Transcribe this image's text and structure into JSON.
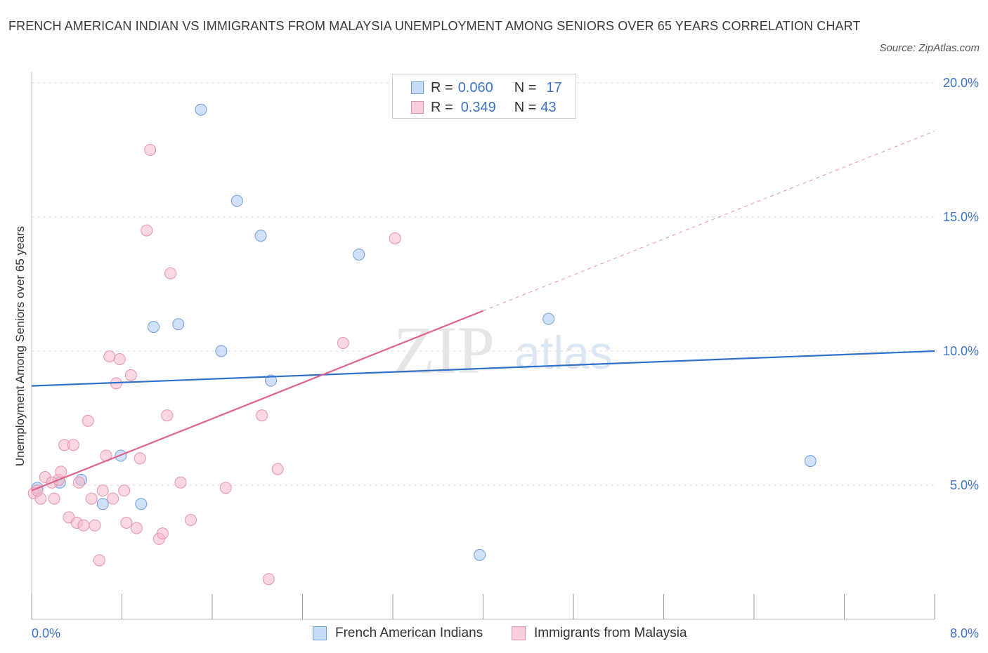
{
  "title": "FRENCH AMERICAN INDIAN VS IMMIGRANTS FROM MALAYSIA UNEMPLOYMENT AMONG SENIORS OVER 65 YEARS CORRELATION CHART",
  "source": "Source: ZipAtlas.com",
  "watermark": {
    "zip": "ZIP",
    "atlas": "atlas"
  },
  "legend": {
    "rows": [
      {
        "r_label": "R =",
        "r_value": "0.060",
        "n_label": "N =",
        "n_value": "17",
        "color": "#a9c6f0"
      },
      {
        "r_label": "R =",
        "r_value": "0.349",
        "n_label": "N =",
        "n_value": "43",
        "color": "#f6b8cb"
      }
    ]
  },
  "colors": {
    "blue_fill": "#a9c6f0",
    "blue_stroke": "#6f9fdc",
    "blue_line": "#2f6fcc",
    "pink_fill": "#f6b8cb",
    "pink_stroke": "#e792ad",
    "pink_line": "#e0638c",
    "tick_label": "#3b73c9",
    "grid": "#dcdcdc"
  },
  "chart_data": {
    "type": "scatter",
    "title": "FRENCH AMERICAN INDIAN VS IMMIGRANTS FROM MALAYSIA UNEMPLOYMENT AMONG SENIORS OVER 65 YEARS CORRELATION CHART",
    "xlabel": "",
    "ylabel": "Unemployment Among Seniors over 65 years",
    "xlim": [
      0,
      8
    ],
    "ylim": [
      0,
      20
    ],
    "x_tick_labels": [
      "0.0%",
      "8.0%"
    ],
    "y_ticks": [
      5,
      10,
      15,
      20
    ],
    "y_tick_labels": [
      "5.0%",
      "10.0%",
      "15.0%",
      "20.0%"
    ],
    "grid": true,
    "legend_position": "top-center",
    "series": [
      {
        "name": "French American Indians",
        "points": [
          [
            0.05,
            4.9
          ],
          [
            0.25,
            5.1
          ],
          [
            0.44,
            5.2
          ],
          [
            0.63,
            4.3
          ],
          [
            0.79,
            6.1
          ],
          [
            0.97,
            4.3
          ],
          [
            1.08,
            10.9
          ],
          [
            1.3,
            11.0
          ],
          [
            1.5,
            19.0
          ],
          [
            1.68,
            10.0
          ],
          [
            1.82,
            15.6
          ],
          [
            2.03,
            14.3
          ],
          [
            2.12,
            8.9
          ],
          [
            2.9,
            13.6
          ],
          [
            3.97,
            2.4
          ],
          [
            4.58,
            11.2
          ],
          [
            6.9,
            5.9
          ]
        ],
        "trend": {
          "x1": 0,
          "y1": 8.7,
          "x2": 8.0,
          "y2": 10.0
        }
      },
      {
        "name": "Immigrants from Malaysia",
        "points": [
          [
            0.02,
            4.7
          ],
          [
            0.08,
            4.5
          ],
          [
            0.12,
            5.3
          ],
          [
            0.18,
            5.1
          ],
          [
            0.2,
            4.5
          ],
          [
            0.24,
            5.2
          ],
          [
            0.26,
            5.5
          ],
          [
            0.29,
            6.5
          ],
          [
            0.33,
            3.8
          ],
          [
            0.37,
            6.5
          ],
          [
            0.4,
            3.6
          ],
          [
            0.42,
            5.1
          ],
          [
            0.46,
            3.5
          ],
          [
            0.5,
            7.4
          ],
          [
            0.53,
            4.5
          ],
          [
            0.56,
            3.5
          ],
          [
            0.6,
            2.2
          ],
          [
            0.63,
            4.8
          ],
          [
            0.66,
            6.1
          ],
          [
            0.69,
            9.8
          ],
          [
            0.72,
            4.5
          ],
          [
            0.75,
            8.8
          ],
          [
            0.78,
            9.7
          ],
          [
            0.82,
            4.8
          ],
          [
            0.84,
            3.6
          ],
          [
            0.88,
            9.1
          ],
          [
            0.93,
            3.4
          ],
          [
            0.96,
            6.0
          ],
          [
            1.02,
            14.5
          ],
          [
            1.05,
            17.5
          ],
          [
            1.13,
            3.0
          ],
          [
            1.16,
            3.2
          ],
          [
            1.2,
            7.6
          ],
          [
            1.23,
            12.9
          ],
          [
            1.32,
            5.1
          ],
          [
            1.41,
            3.7
          ],
          [
            1.72,
            4.9
          ],
          [
            2.04,
            7.6
          ],
          [
            2.1,
            1.5
          ],
          [
            2.18,
            5.6
          ],
          [
            2.76,
            10.3
          ],
          [
            3.22,
            14.2
          ],
          [
            0.05,
            4.8
          ]
        ],
        "trend": {
          "x1": 0,
          "y1": 4.8,
          "x2": 4.0,
          "y2": 11.5
        },
        "trend_extension": {
          "x1": 4.0,
          "y1": 11.5,
          "x2": 8.0,
          "y2": 18.2
        }
      }
    ]
  }
}
